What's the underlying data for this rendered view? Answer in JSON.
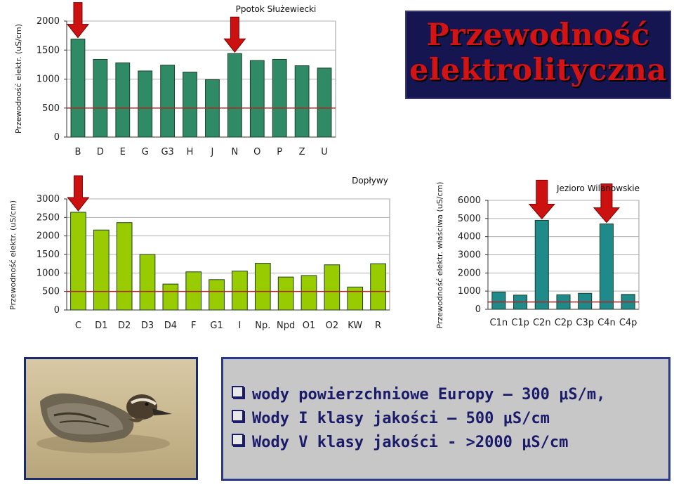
{
  "title": {
    "line1": "Przewodność",
    "line2": "elektrolityczna"
  },
  "photo_label": "duck-photo",
  "bullets": [
    "wody powierzchniowe Europy – 300 μS/m,",
    "Wody I klasy jakości – 500 μS/cm",
    "Wody V klasy jakości - >2000 μS/cm"
  ],
  "colors": {
    "green_dark": "#2e8b65",
    "green_light": "#99cc00",
    "teal": "#1f8a8a",
    "red_line": "#b22222",
    "arrow": "#cc1111",
    "title_bg": "#151552",
    "title_text": "#d41414"
  },
  "chart_data": [
    {
      "type": "bar",
      "title": "Ppotok Służewiecki",
      "ylabel": "Przewodność elektr. (uS/cm)",
      "categories": [
        "B",
        "D",
        "E",
        "G",
        "G3",
        "H",
        "J",
        "N",
        "O",
        "P",
        "Z",
        "U"
      ],
      "values": [
        1690,
        1340,
        1280,
        1140,
        1240,
        1120,
        990,
        1440,
        1320,
        1340,
        1230,
        1190
      ],
      "yticks": [
        "0",
        "500",
        "1000",
        "1500",
        "2000"
      ],
      "ylim": [
        0,
        2000
      ],
      "reference_line": 500,
      "arrows_at": [
        "B",
        "N"
      ],
      "bar_color": "#2e8b65"
    },
    {
      "type": "bar",
      "title": "Dopływy",
      "ylabel": "Przewodność elektr. (uS/cm)",
      "categories": [
        "C",
        "D1",
        "D2",
        "D3",
        "D4",
        "F",
        "G1",
        "I",
        "Np.",
        "Npd",
        "O1",
        "O2",
        "KW",
        "R"
      ],
      "values": [
        2640,
        2160,
        2360,
        1500,
        700,
        1030,
        820,
        1050,
        1260,
        890,
        930,
        1220,
        620,
        1250
      ],
      "yticks": [
        "0",
        "500",
        "1000",
        "1500",
        "2000",
        "2500",
        "3000"
      ],
      "ylim": [
        0,
        3000
      ],
      "reference_line": 500,
      "arrows_at": [
        "C"
      ],
      "bar_color": "#99cc00"
    },
    {
      "type": "bar",
      "title": "Jezioro Wilanowskie",
      "ylabel": "Przewodność elektr. właściwa (uS/cm)",
      "categories": [
        "C1n",
        "C1p",
        "C2n",
        "C2p",
        "C3p",
        "C4n",
        "C4p"
      ],
      "values": [
        950,
        780,
        4900,
        800,
        880,
        4700,
        820
      ],
      "yticks": [
        "0",
        "1000",
        "2000",
        "3000",
        "4000",
        "5000",
        "6000"
      ],
      "ylim": [
        0,
        6000
      ],
      "reference_line": 400,
      "arrows_at": [
        "C2n",
        "C4n"
      ],
      "bar_color": "#1f8a8a"
    }
  ]
}
